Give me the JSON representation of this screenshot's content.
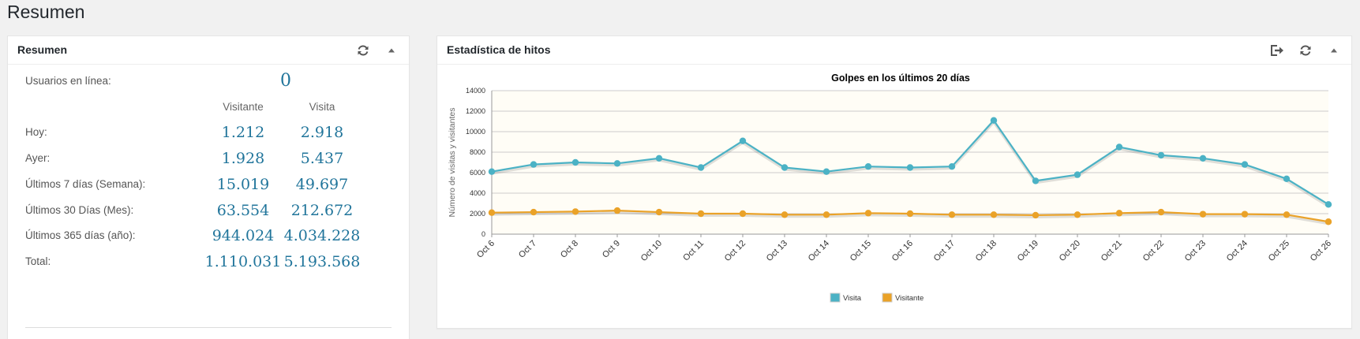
{
  "page": {
    "title": "Resumen"
  },
  "summary": {
    "title": "Resumen",
    "online_label": "Usuarios en línea:",
    "online_value": "0",
    "col_visitor": "Visitante",
    "col_visit": "Visita",
    "rows": [
      {
        "label": "Hoy:",
        "visitor": "1.212",
        "visit": "2.918"
      },
      {
        "label": "Ayer:",
        "visitor": "1.928",
        "visit": "5.437"
      },
      {
        "label": "Últimos 7 días (Semana):",
        "visitor": "15.019",
        "visit": "49.697"
      },
      {
        "label": "Últimos 30 Días (Mes):",
        "visitor": "63.554",
        "visit": "212.672"
      },
      {
        "label": "Últimos 365 días (año):",
        "visitor": "944.024",
        "visit": "4.034.228"
      },
      {
        "label": "Total:",
        "visitor": "1.110.031",
        "visit": "5.193.568"
      }
    ]
  },
  "hits": {
    "title": "Estadística de hitos"
  },
  "icons": {
    "refresh": "refresh-icon",
    "collapse": "triangle-up-icon",
    "export": "sign-out-icon"
  },
  "chart_data": {
    "type": "line",
    "title": "Golpes en los últimos 20 días",
    "ylabel": "Número de visitas y visitantes",
    "xlabel": "",
    "ylim": [
      0,
      14000
    ],
    "yticks": [
      0,
      2000,
      4000,
      6000,
      8000,
      10000,
      12000,
      14000
    ],
    "categories": [
      "Oct 6",
      "Oct 7",
      "Oct 8",
      "Oct 9",
      "Oct 10",
      "Oct 11",
      "Oct 12",
      "Oct 13",
      "Oct 14",
      "Oct 15",
      "Oct 16",
      "Oct 17",
      "Oct 18",
      "Oct 19",
      "Oct 20",
      "Oct 21",
      "Oct 22",
      "Oct 23",
      "Oct 24",
      "Oct 25",
      "Oct 26"
    ],
    "series": [
      {
        "name": "Visita",
        "color": "#4bb2c5",
        "values": [
          6100,
          6800,
          7000,
          6900,
          7400,
          6500,
          9100,
          6500,
          6100,
          6600,
          6500,
          6600,
          11100,
          5200,
          5800,
          8500,
          7700,
          7400,
          6800,
          5400,
          2900
        ]
      },
      {
        "name": "Visitante",
        "color": "#eaa228",
        "values": [
          2100,
          2150,
          2200,
          2300,
          2150,
          2000,
          2000,
          1900,
          1900,
          2050,
          2000,
          1900,
          1900,
          1850,
          1900,
          2050,
          2150,
          1950,
          1950,
          1900,
          1212
        ]
      }
    ],
    "grid": true,
    "legend": "bottom-center"
  }
}
